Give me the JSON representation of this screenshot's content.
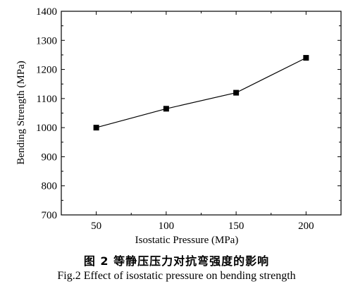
{
  "chart_data": {
    "type": "line",
    "x": [
      50,
      100,
      150,
      200
    ],
    "series": [
      {
        "values": [
          1000,
          1065,
          1120,
          1240
        ]
      }
    ],
    "xlabel": "Isostatic Pressure (MPa)",
    "ylabel": "Bending Strength (MPa)",
    "xlim": [
      25,
      225
    ],
    "ylim": [
      700,
      1400
    ],
    "xticks": [
      "50",
      "100",
      "150",
      "200"
    ],
    "yticks": [
      "700",
      "800",
      "900",
      "1000",
      "1100",
      "1200",
      "1300",
      "1400"
    ],
    "grid": false,
    "marker": "square"
  },
  "caption": {
    "chinese": "图 2   等静压压力对抗弯强度的影响",
    "english": "Fig.2 Effect of isostatic pressure on bending strength"
  }
}
